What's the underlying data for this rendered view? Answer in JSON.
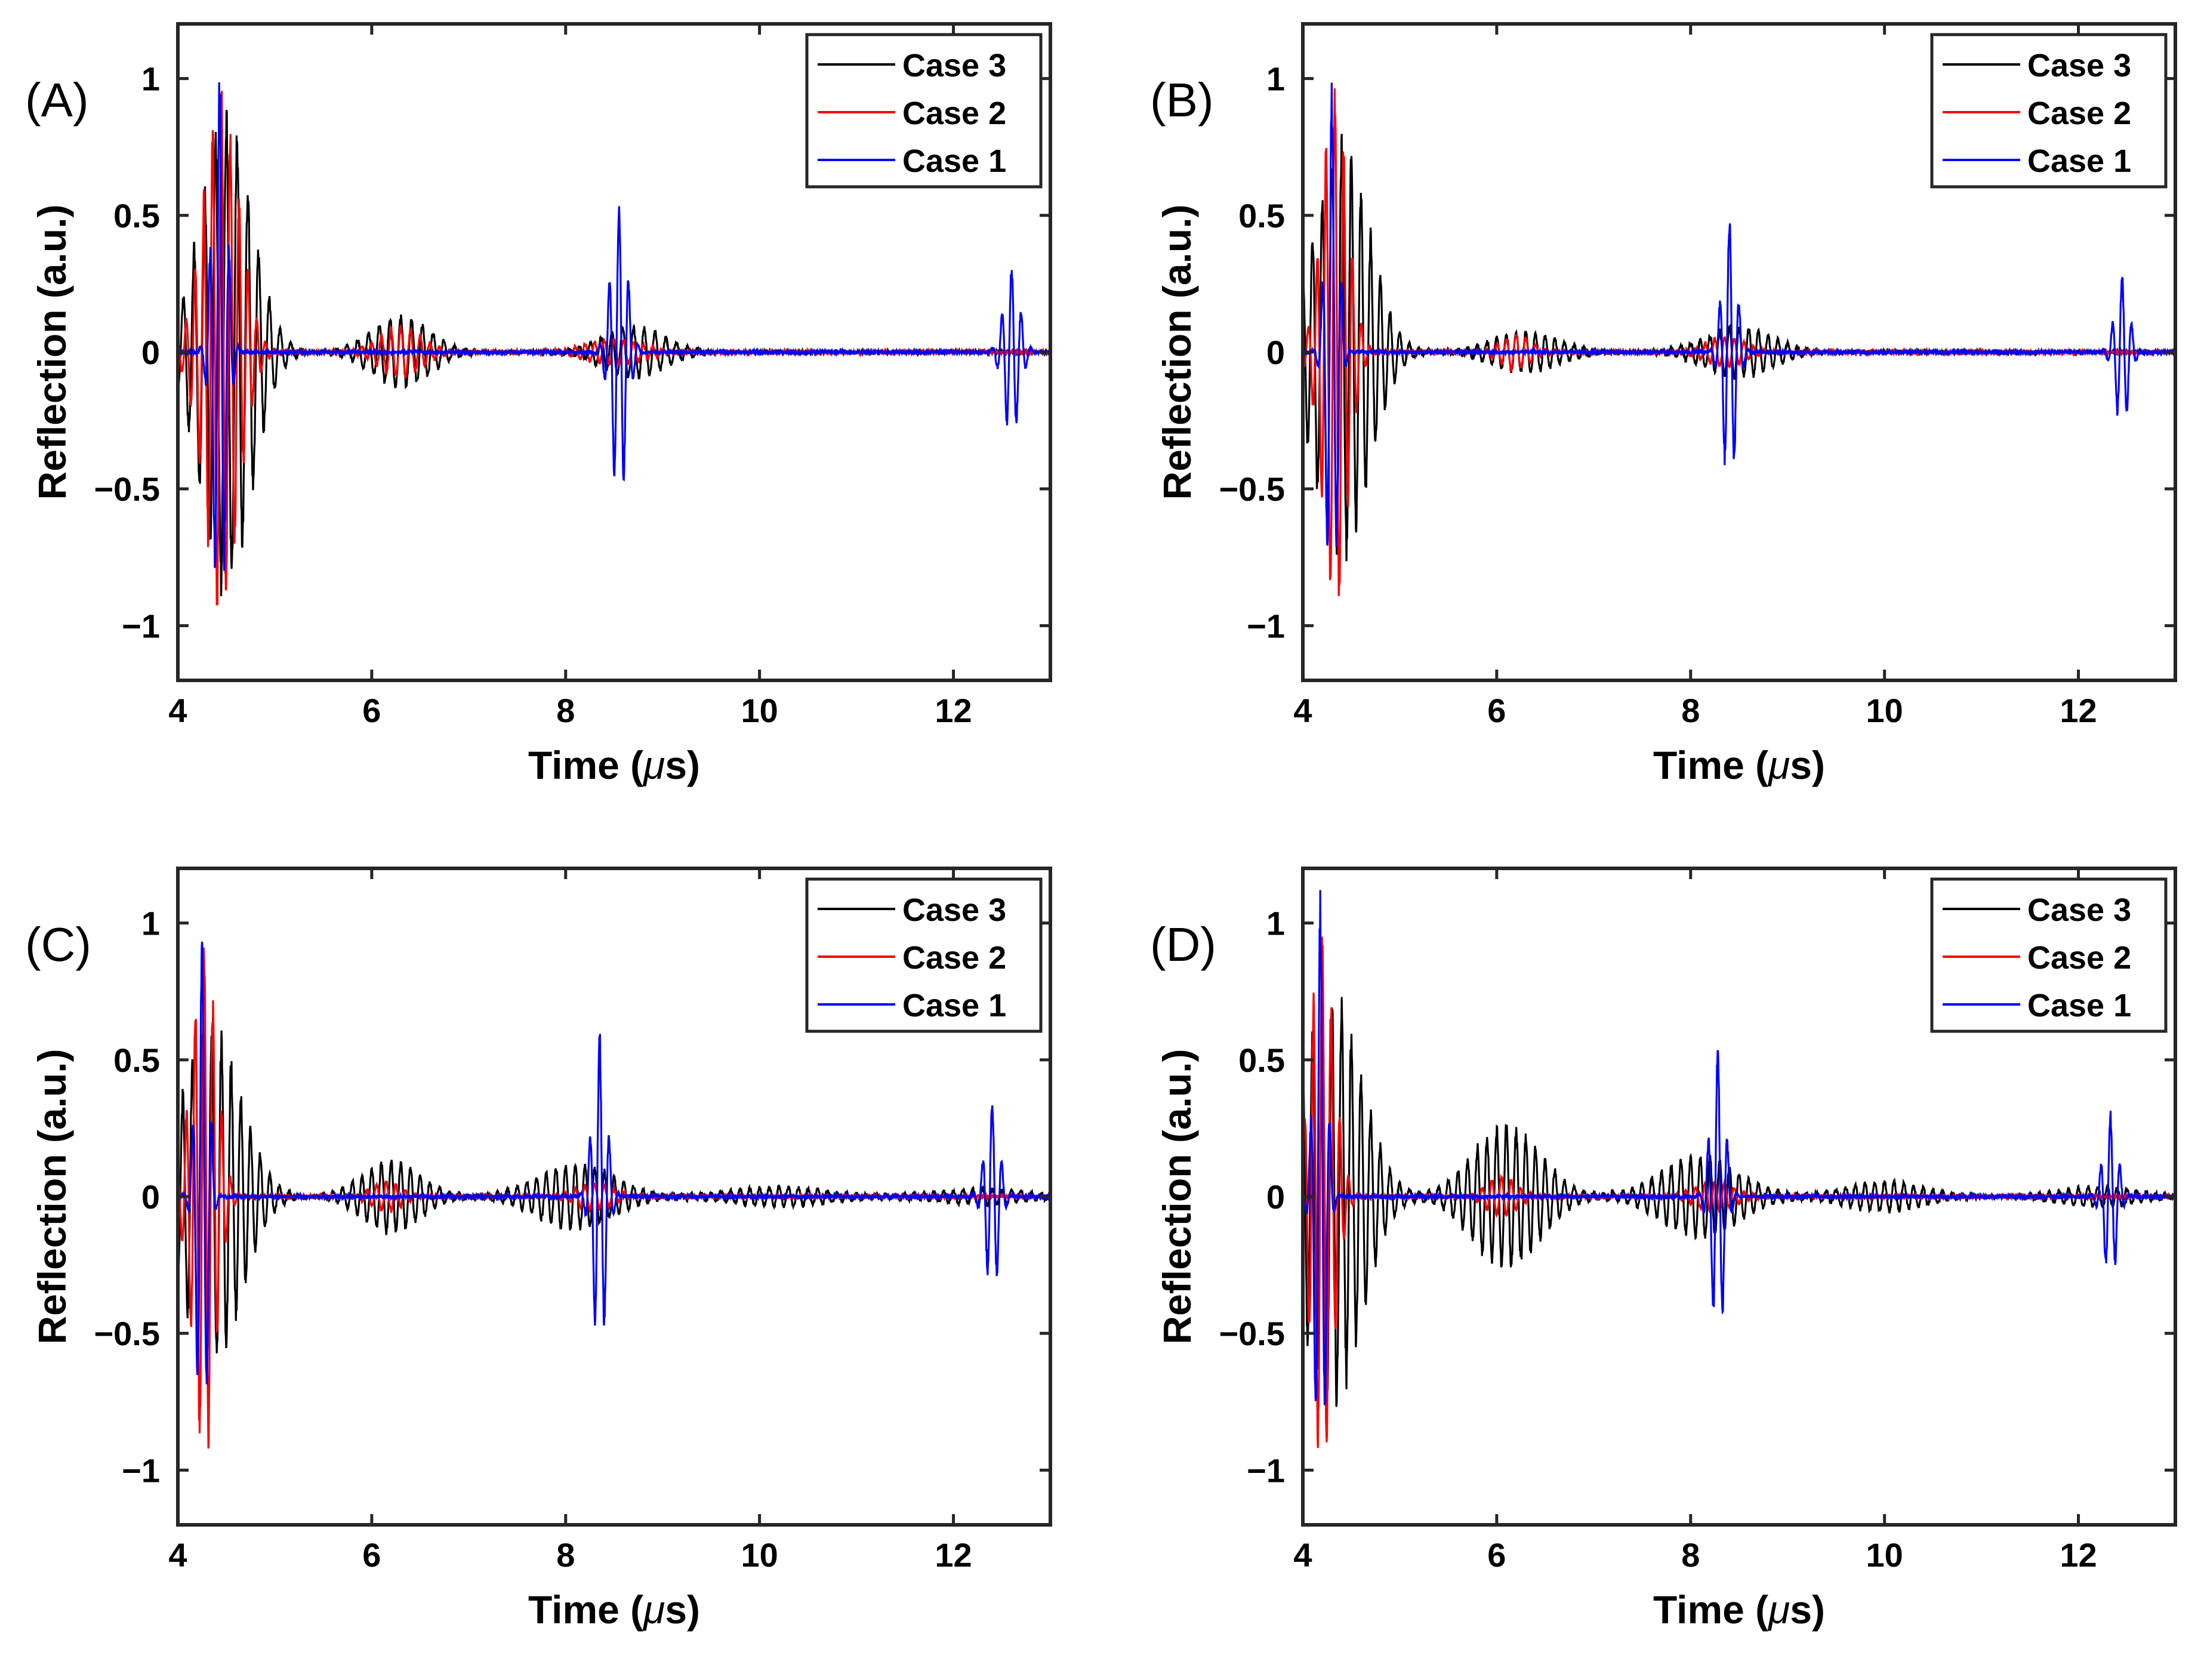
{
  "figure": {
    "panels": [
      "(A)",
      "(B)",
      "(C)",
      "(D)"
    ],
    "colors": {
      "Case 3": "#000000",
      "Case 2": "#ff0000",
      "Case 1": "#0000ff"
    }
  },
  "chart_data": [
    {
      "type": "line",
      "panel": "(A)",
      "xlabel_pre": "Time (",
      "xlabel_mu": "μ",
      "xlabel_post": "s)",
      "ylabel": "Reflection (a.u.)",
      "xlim": [
        4,
        13
      ],
      "ylim": [
        -1.2,
        1.2
      ],
      "xticks": [
        "4",
        "6",
        "8",
        "10",
        "12"
      ],
      "yticks": [
        "1",
        "0.5",
        "0",
        "−0.5",
        "−1"
      ],
      "legend": [
        "Case 3",
        "Case 2",
        "Case 1"
      ],
      "legend_position": "top-right",
      "series": [
        {
          "name": "Case 3",
          "color": "#000000",
          "bursts": [
            [
              4.5,
              0.92,
              0.26,
              9.0
            ],
            [
              6.3,
              0.14,
              0.3,
              9.0
            ],
            [
              8.7,
              0.1,
              0.32,
              9.0
            ]
          ]
        },
        {
          "name": "Case 2",
          "color": "#ff0000",
          "bursts": [
            [
              4.45,
              1.0,
              0.18,
              11.0
            ],
            [
              6.3,
              0.1,
              0.22,
              10.0
            ],
            [
              8.5,
              0.05,
              0.3,
              10.0
            ]
          ]
        },
        {
          "name": "Case 1",
          "color": "#0000ff",
          "bursts": [
            [
              4.43,
              1.05,
              0.07,
              10.0
            ],
            [
              8.55,
              0.58,
              0.08,
              10.0
            ],
            [
              12.6,
              0.33,
              0.08,
              10.0
            ]
          ]
        }
      ]
    },
    {
      "type": "line",
      "panel": "(B)",
      "xlabel_pre": "Time (",
      "xlabel_mu": "μ",
      "xlabel_post": "s)",
      "ylabel": "Reflection (a.u.)",
      "xlim": [
        4,
        13
      ],
      "ylim": [
        -1.2,
        1.2
      ],
      "xticks": [
        "4",
        "6",
        "8",
        "10",
        "12"
      ],
      "yticks": [
        "1",
        "0.5",
        "0",
        "−0.5",
        "−1"
      ],
      "legend": [
        "Case 3",
        "Case 2",
        "Case 1"
      ],
      "legend_position": "top-right",
      "series": [
        {
          "name": "Case 3",
          "color": "#000000",
          "bursts": [
            [
              4.4,
              0.8,
              0.28,
              10.0
            ],
            [
              6.3,
              0.08,
              0.35,
              10.0
            ],
            [
              8.5,
              0.1,
              0.35,
              10.0
            ]
          ]
        },
        {
          "name": "Case 2",
          "color": "#ff0000",
          "bursts": [
            [
              4.33,
              1.0,
              0.13,
              11.0
            ],
            [
              6.2,
              0.07,
              0.15,
              10.0
            ],
            [
              8.35,
              0.06,
              0.2,
              10.0
            ]
          ]
        },
        {
          "name": "Case 1",
          "color": "#0000ff",
          "bursts": [
            [
              4.3,
              1.0,
              0.06,
              10.0
            ],
            [
              8.4,
              0.53,
              0.07,
              10.0
            ],
            [
              12.45,
              0.3,
              0.07,
              10.0
            ]
          ]
        }
      ]
    },
    {
      "type": "line",
      "panel": "(C)",
      "xlabel_pre": "Time (",
      "xlabel_mu": "μ",
      "xlabel_post": "s)",
      "ylabel": "Reflection (a.u.)",
      "xlim": [
        4,
        13
      ],
      "ylim": [
        -1.2,
        1.2
      ],
      "xticks": [
        "4",
        "6",
        "8",
        "10",
        "12"
      ],
      "yticks": [
        "1",
        "0.5",
        "0",
        "−0.5",
        "−1"
      ],
      "legend": [
        "Case 3",
        "Case 2",
        "Case 1"
      ],
      "legend_position": "top-right",
      "series": [
        {
          "name": "Case 3",
          "color": "#000000",
          "bursts": [
            [
              4.35,
              0.65,
              0.3,
              10.0
            ],
            [
              6.2,
              0.14,
              0.3,
              10.0
            ],
            [
              8.1,
              0.13,
              0.4,
              10.0
            ],
            [
              10.2,
              0.04,
              0.5,
              10.0
            ],
            [
              12.3,
              0.03,
              0.5,
              10.0
            ]
          ]
        },
        {
          "name": "Case 2",
          "color": "#ff0000",
          "bursts": [
            [
              4.27,
              1.0,
              0.12,
              11.0
            ],
            [
              6.15,
              0.06,
              0.15,
              10.0
            ],
            [
              8.3,
              0.05,
              0.2,
              10.0
            ]
          ]
        },
        {
          "name": "Case 1",
          "color": "#0000ff",
          "bursts": [
            [
              4.25,
              1.0,
              0.06,
              10.0
            ],
            [
              8.35,
              0.63,
              0.07,
              10.0
            ],
            [
              12.4,
              0.38,
              0.07,
              10.0
            ]
          ]
        }
      ]
    },
    {
      "type": "line",
      "panel": "(D)",
      "xlabel_pre": "Time (",
      "xlabel_mu": "μ",
      "xlabel_post": "s)",
      "ylabel": "Reflection (a.u.)",
      "xlim": [
        4,
        13
      ],
      "ylim": [
        -1.2,
        1.2
      ],
      "xticks": [
        "4",
        "6",
        "8",
        "10",
        "12"
      ],
      "yticks": [
        "1",
        "0.5",
        "0",
        "−0.5",
        "−1"
      ],
      "legend": [
        "Case 3",
        "Case 2",
        "Case 1"
      ],
      "legend_position": "top-right",
      "series": [
        {
          "name": "Case 3",
          "color": "#000000",
          "bursts": [
            [
              4.3,
              0.8,
              0.3,
              10.0
            ],
            [
              6.1,
              0.28,
              0.35,
              10.0
            ],
            [
              8.1,
              0.16,
              0.4,
              10.0
            ],
            [
              10.0,
              0.06,
              0.4,
              10.0
            ],
            [
              12.2,
              0.04,
              0.4,
              10.0
            ]
          ]
        },
        {
          "name": "Case 2",
          "color": "#ff0000",
          "bursts": [
            [
              4.2,
              1.0,
              0.12,
              11.0
            ],
            [
              6.05,
              0.08,
              0.15,
              10.0
            ],
            [
              8.25,
              0.06,
              0.2,
              10.0
            ]
          ]
        },
        {
          "name": "Case 1",
          "color": "#0000ff",
          "bursts": [
            [
              4.18,
              1.12,
              0.06,
              10.0
            ],
            [
              8.28,
              0.59,
              0.07,
              10.0
            ],
            [
              12.33,
              0.33,
              0.07,
              10.0
            ]
          ]
        }
      ]
    }
  ]
}
